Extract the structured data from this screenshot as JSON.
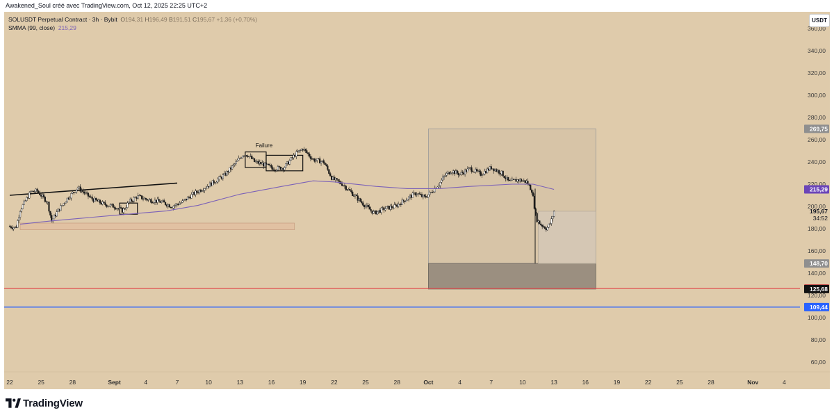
{
  "header": {
    "caption": "Awakened_Soul créé avec TradingView.com, Oct 12, 2025 22:25 UTC+2",
    "symbol_line": "SOLUSDT Perpetual Contract · 3h · Bybit",
    "ohlc": {
      "o_label": "O",
      "o_value": "194,31",
      "h_label": "H",
      "h_value": "196,49",
      "b_label": "B",
      "b_value": "191,51",
      "c_label": "C",
      "c_value": "195,67",
      "change": "+1,36 (+0,70%)"
    },
    "indicator_label": "SMMA (99, close)",
    "indicator_value": "215,29",
    "currency_button": "USDT"
  },
  "footer": {
    "brand": "TradingView"
  },
  "chart_data": {
    "type": "candlestick",
    "symbol": "SOLUSDT Perpetual Contract",
    "timeframe": "3h",
    "exchange": "Bybit",
    "background_color": "#dfcbab",
    "ylim": [
      55,
      375
    ],
    "y_ticks": [
      60,
      80,
      100,
      120,
      140,
      160,
      180,
      200,
      220,
      240,
      260,
      280,
      300,
      320,
      340,
      360
    ],
    "x_ticks": [
      {
        "label": "22",
        "day": 0
      },
      {
        "label": "25",
        "day": 3
      },
      {
        "label": "28",
        "day": 6
      },
      {
        "label": "Sept",
        "day": 10,
        "bold": true
      },
      {
        "label": "4",
        "day": 13
      },
      {
        "label": "7",
        "day": 16
      },
      {
        "label": "10",
        "day": 19
      },
      {
        "label": "13",
        "day": 22
      },
      {
        "label": "16",
        "day": 25
      },
      {
        "label": "19",
        "day": 28
      },
      {
        "label": "22",
        "day": 31
      },
      {
        "label": "25",
        "day": 34
      },
      {
        "label": "28",
        "day": 37
      },
      {
        "label": "Oct",
        "day": 40,
        "bold": true
      },
      {
        "label": "4",
        "day": 43
      },
      {
        "label": "7",
        "day": 46
      },
      {
        "label": "10",
        "day": 49
      },
      {
        "label": "13",
        "day": 52
      },
      {
        "label": "16",
        "day": 55
      },
      {
        "label": "19",
        "day": 58
      },
      {
        "label": "22",
        "day": 61
      },
      {
        "label": "25",
        "day": 64
      },
      {
        "label": "28",
        "day": 67
      },
      {
        "label": "Nov",
        "day": 71,
        "bold": true
      },
      {
        "label": "4",
        "day": 74
      }
    ],
    "price_path": [
      [
        0,
        182
      ],
      [
        0.6,
        181
      ],
      [
        1.0,
        197
      ],
      [
        2.0,
        213
      ],
      [
        2.6,
        214
      ],
      [
        3.6,
        204
      ],
      [
        4.0,
        187
      ],
      [
        4.6,
        196
      ],
      [
        5.4,
        206
      ],
      [
        6.5,
        217
      ],
      [
        7.4,
        210
      ],
      [
        8.0,
        206
      ],
      [
        9.0,
        202
      ],
      [
        10.0,
        200
      ],
      [
        10.8,
        196
      ],
      [
        11.4,
        204
      ],
      [
        12.2,
        209
      ],
      [
        13.2,
        206
      ],
      [
        14.5,
        204
      ],
      [
        15.5,
        200
      ],
      [
        16.5,
        204
      ],
      [
        17.5,
        211
      ],
      [
        19.0,
        219
      ],
      [
        20.5,
        228
      ],
      [
        21.5,
        238
      ],
      [
        22.3,
        247
      ],
      [
        22.8,
        246
      ],
      [
        23.4,
        240
      ],
      [
        24.2,
        238
      ],
      [
        25.3,
        234
      ],
      [
        26.2,
        235
      ],
      [
        27.3,
        247
      ],
      [
        28.0,
        252
      ],
      [
        29.0,
        242
      ],
      [
        30.0,
        240
      ],
      [
        30.8,
        225
      ],
      [
        31.8,
        220
      ],
      [
        32.8,
        211
      ],
      [
        33.8,
        202
      ],
      [
        34.8,
        194
      ],
      [
        35.8,
        198
      ],
      [
        36.8,
        200
      ],
      [
        37.8,
        206
      ],
      [
        38.8,
        212
      ],
      [
        39.6,
        208
      ],
      [
        40.2,
        212
      ],
      [
        41.0,
        220
      ],
      [
        41.6,
        228
      ],
      [
        42.2,
        232
      ],
      [
        43.0,
        229
      ],
      [
        44.0,
        234
      ],
      [
        45.0,
        229
      ],
      [
        46.0,
        235
      ],
      [
        47.0,
        230
      ],
      [
        47.7,
        222
      ],
      [
        48.6,
        224
      ],
      [
        49.4,
        222
      ],
      [
        49.9,
        214
      ],
      [
        50.3,
        189
      ],
      [
        50.7,
        184
      ],
      [
        51.3,
        180
      ],
      [
        51.7,
        186
      ],
      [
        52.0,
        195.67
      ]
    ],
    "wicks": [
      {
        "day": 50.2,
        "low": 148.7,
        "high": 216
      }
    ],
    "overlays": [
      {
        "type": "line",
        "name": "SMMA (99, close)",
        "color": "#7b61b8",
        "value_label": "215,29",
        "points": [
          [
            1,
            184
          ],
          [
            4,
            187
          ],
          [
            10,
            192
          ],
          [
            15,
            196
          ],
          [
            18,
            201
          ],
          [
            22,
            211
          ],
          [
            26,
            218
          ],
          [
            29,
            223
          ],
          [
            31,
            222
          ],
          [
            35,
            218
          ],
          [
            38,
            216
          ],
          [
            41,
            216
          ],
          [
            44,
            218
          ],
          [
            48,
            220
          ],
          [
            50,
            220
          ],
          [
            52,
            215.29
          ]
        ]
      },
      {
        "type": "trendline",
        "color": "#111111",
        "points": [
          [
            0,
            210
          ],
          [
            16,
            221
          ]
        ]
      },
      {
        "type": "rectangle",
        "fill": "#e2bfa0",
        "stroke": "#c9a284",
        "day_range": [
          1,
          27.2
        ],
        "price_range": [
          179,
          185
        ]
      },
      {
        "type": "rectangle",
        "fill": "#d6c3a6",
        "stroke": "#9a9a9a",
        "day_range": [
          40,
          56
        ],
        "price_range": [
          148.7,
          269.75
        ]
      },
      {
        "type": "rectangle",
        "fill": "#8f8578",
        "stroke": "#6b665e",
        "day_range": [
          40,
          56
        ],
        "price_range": [
          125.68,
          148.7
        ]
      },
      {
        "type": "rectangle",
        "fill": "#d5c8b6",
        "stroke": "#b6ab9a",
        "day_range": [
          50.5,
          56
        ],
        "price_range": [
          148.7,
          195.67
        ]
      },
      {
        "type": "hline",
        "color": "#e05252",
        "price": 126.17
      },
      {
        "type": "hline",
        "color": "#2962ff",
        "price": 109.44
      },
      {
        "type": "label",
        "text": "Failure",
        "day": 24.3,
        "price": 252
      },
      {
        "type": "box",
        "day_range": [
          22.5,
          24.5
        ],
        "price_range": [
          235,
          249
        ]
      },
      {
        "type": "box",
        "day_range": [
          24.5,
          28
        ],
        "price_range": [
          232,
          246
        ]
      },
      {
        "type": "box",
        "day_range": [
          10.5,
          12.2
        ],
        "price_range": [
          193,
          203
        ]
      }
    ],
    "price_labels": [
      {
        "price": 269.75,
        "text": "269,75",
        "bg": "#8f8f8f",
        "color": "#ffffff"
      },
      {
        "price": 215.29,
        "text": "215,29",
        "bg": "#6b45b8",
        "color": "#ffffff"
      },
      {
        "price": 195.67,
        "text": "195,67",
        "bg": "none",
        "color": "#131722"
      },
      {
        "price": 148.7,
        "text": "148,70",
        "bg": "#8f8f8f",
        "color": "#ffffff"
      },
      {
        "price": 126.17,
        "text": "126,17",
        "bg": "#e04848",
        "color": "#ffffff"
      },
      {
        "price": 125.68,
        "text": "125,68",
        "bg": "#111111",
        "color": "#ffffff"
      },
      {
        "price": 109.44,
        "text": "109,44",
        "bg": "#2962ff",
        "color": "#ffffff"
      }
    ],
    "countdown": "34:52"
  }
}
